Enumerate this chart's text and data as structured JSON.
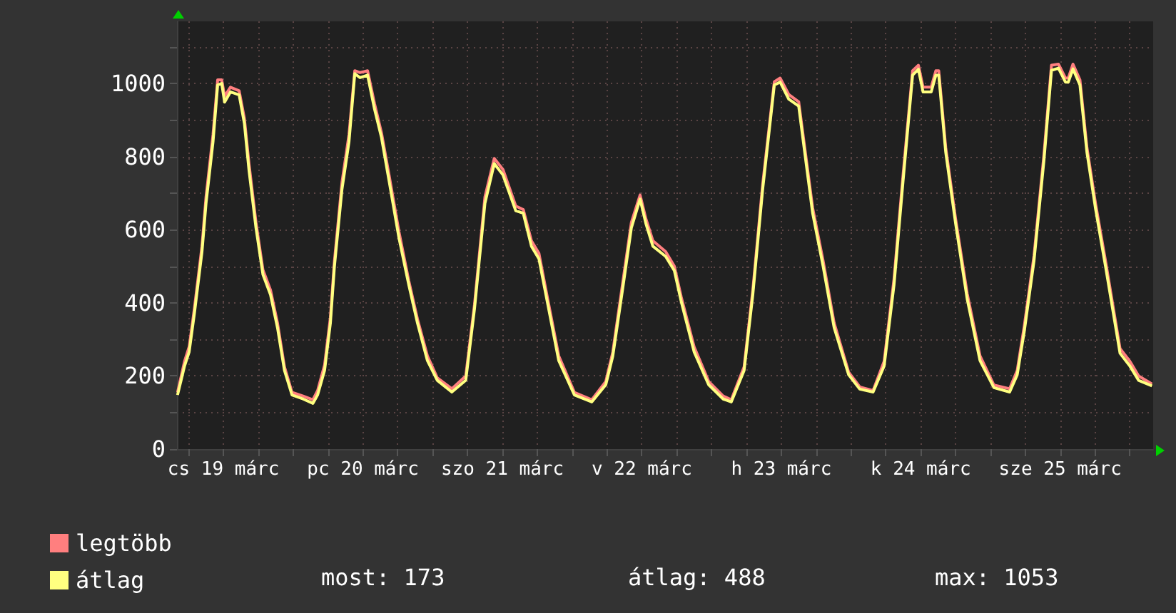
{
  "chart_data": {
    "type": "line",
    "x": [
      "--03-19T04:06",
      "--03-19T05:18",
      "--03-19T06:06",
      "--03-19T07:00",
      "--03-19T08:18",
      "--03-19T09:00",
      "--03-19T10:12",
      "--03-19T11:00",
      "--03-19T11:42",
      "--03-19T12:12",
      "--03-19T13:12",
      "--03-19T14:42",
      "--03-19T15:36",
      "--03-19T16:24",
      "--03-19T17:36",
      "--03-19T18:48",
      "--03-19T20:06",
      "--03-19T21:18",
      "--03-19T22:30",
      "--03-19T23:48",
      "--03-20T01:42",
      "--03-20T03:24",
      "--03-20T04:12",
      "--03-20T05:24",
      "--03-20T06:24",
      "--03-20T07:06",
      "--03-20T08:24",
      "--03-20T09:36",
      "--03-20T10:36",
      "--03-20T11:30",
      "--03-20T12:48",
      "--03-20T14:00",
      "--03-20T15:12",
      "--03-20T16:30",
      "--03-20T18:12",
      "--03-20T19:54",
      "--03-20T21:24",
      "--03-20T23:06",
      "--03-21T00:48",
      "--03-21T03:18",
      "--03-21T05:42",
      "--03-21T07:12",
      "--03-21T09:00",
      "--03-21T10:36",
      "--03-21T12:06",
      "--03-21T14:18",
      "--03-21T15:36",
      "--03-21T17:00",
      "--03-21T18:18",
      "--03-21T19:30",
      "--03-21T21:42",
      "--03-22T00:24",
      "--03-22T03:24",
      "--03-22T05:48",
      "--03-22T07:00",
      "--03-22T08:48",
      "--03-22T10:12",
      "--03-22T11:42",
      "--03-22T12:42",
      "--03-22T13:54",
      "--03-22T16:06",
      "--03-22T17:36",
      "--03-22T18:48",
      "--03-22T21:00",
      "--03-22T23:30",
      "--03-23T02:00",
      "--03-23T03:24",
      "--03-23T05:36",
      "--03-23T07:06",
      "--03-23T08:48",
      "--03-23T10:48",
      "--03-23T11:48",
      "--03-23T13:18",
      "--03-23T15:00",
      "--03-23T17:24",
      "--03-23T19:12",
      "--03-23T21:06",
      "--03-23T23:36",
      "--03-24T01:30",
      "--03-24T03:48",
      "--03-24T05:42",
      "--03-24T07:24",
      "--03-24T08:54",
      "--03-24T10:36",
      "--03-24T11:36",
      "--03-24T12:24",
      "--03-24T13:48",
      "--03-24T14:36",
      "--03-24T15:06",
      "--03-24T16:18",
      "--03-24T18:00",
      "--03-24T20:00",
      "--03-24T22:12",
      "--03-25T00:36",
      "--03-25T03:18",
      "--03-25T04:36",
      "--03-25T05:48",
      "--03-25T07:30",
      "--03-25T09:12",
      "--03-25T10:30",
      "--03-25T11:42",
      "--03-25T12:54",
      "--03-25T13:24",
      "--03-25T14:12",
      "--03-25T15:24",
      "--03-25T16:36",
      "--03-25T18:06",
      "--03-25T19:48",
      "--03-25T22:18",
      "--03-26T00:00",
      "--03-26T01:30",
      "--03-26T03:48"
    ],
    "series": [
      {
        "name": "legtöbb",
        "color": "#ff7f7f",
        "values": [
          155,
          240,
          280,
          385,
          555,
          690,
          860,
          1010,
          1010,
          965,
          990,
          980,
          905,
          780,
          620,
          490,
          435,
          345,
          225,
          155,
          145,
          135,
          160,
          230,
          360,
          515,
          730,
          860,
          1035,
          1030,
          1035,
          945,
          865,
          750,
          595,
          460,
          355,
          255,
          195,
          165,
          200,
          395,
          690,
          795,
          765,
          665,
          655,
          570,
          535,
          435,
          255,
          155,
          135,
          185,
          265,
          465,
          620,
          695,
          630,
          570,
          540,
          500,
          415,
          280,
          185,
          145,
          135,
          225,
          435,
          725,
          1005,
          1015,
          970,
          950,
          660,
          515,
          345,
          210,
          170,
          160,
          240,
          465,
          740,
          1035,
          1050,
          990,
          990,
          1035,
          1035,
          825,
          630,
          425,
          255,
          175,
          165,
          215,
          335,
          530,
          805,
          1050,
          1053,
          1015,
          1015,
          1053,
          1010,
          825,
          670,
          515,
          275,
          240,
          200,
          178
        ]
      },
      {
        "name": "átlag",
        "color": "#ffff80",
        "values": [
          148,
          227,
          266,
          371,
          539,
          672,
          840,
          996,
          1000,
          949,
          977,
          969,
          891,
          762,
          605,
          477,
          422,
          332,
          215,
          148,
          137,
          125,
          148,
          215,
          344,
          500,
          711,
          840,
          1027,
          1016,
          1023,
          930,
          852,
          734,
          578,
          449,
          344,
          242,
          188,
          156,
          188,
          383,
          672,
          781,
          750,
          652,
          645,
          555,
          520,
          422,
          242,
          148,
          129,
          176,
          254,
          449,
          605,
          684,
          617,
          555,
          527,
          488,
          402,
          266,
          176,
          137,
          129,
          215,
          422,
          711,
          996,
          1004,
          957,
          938,
          645,
          500,
          332,
          203,
          164,
          156,
          227,
          449,
          723,
          1023,
          1039,
          977,
          977,
          1023,
          1023,
          812,
          617,
          410,
          242,
          168,
          156,
          203,
          320,
          516,
          789,
          1036,
          1042,
          1004,
          1004,
          1040,
          996,
          812,
          656,
          500,
          262,
          227,
          188,
          173
        ]
      }
    ],
    "xlim": [
      "--03-19T04:00",
      "--03-26T04:00"
    ],
    "xticks": [
      {
        "value": "--03-19T06:00",
        "label": null
      },
      {
        "value": "--03-19T12:00",
        "label": "cs 19 márc"
      },
      {
        "value": "--03-19T18:00",
        "label": null
      },
      {
        "value": "--03-20T00:00",
        "label": null
      },
      {
        "value": "--03-20T06:00",
        "label": null
      },
      {
        "value": "--03-20T12:00",
        "label": "pc 20 márc"
      },
      {
        "value": "--03-20T18:00",
        "label": null
      },
      {
        "value": "--03-21T00:00",
        "label": null
      },
      {
        "value": "--03-21T06:00",
        "label": null
      },
      {
        "value": "--03-21T12:00",
        "label": "szo 21 márc"
      },
      {
        "value": "--03-21T18:00",
        "label": null
      },
      {
        "value": "--03-22T00:00",
        "label": null
      },
      {
        "value": "--03-22T06:00",
        "label": null
      },
      {
        "value": "--03-22T12:00",
        "label": "v 22 márc"
      },
      {
        "value": "--03-22T18:00",
        "label": null
      },
      {
        "value": "--03-23T00:00",
        "label": null
      },
      {
        "value": "--03-23T06:00",
        "label": null
      },
      {
        "value": "--03-23T12:00",
        "label": "h 23 márc"
      },
      {
        "value": "--03-23T18:00",
        "label": null
      },
      {
        "value": "--03-24T00:00",
        "label": null
      },
      {
        "value": "--03-24T06:00",
        "label": null
      },
      {
        "value": "--03-24T12:00",
        "label": "k 24 márc"
      },
      {
        "value": "--03-24T18:00",
        "label": null
      },
      {
        "value": "--03-25T00:00",
        "label": null
      },
      {
        "value": "--03-25T06:00",
        "label": null
      },
      {
        "value": "--03-25T12:00",
        "label": "sze 25 márc"
      },
      {
        "value": "--03-25T18:00",
        "label": null
      },
      {
        "value": "--03-26T00:00",
        "label": null
      }
    ],
    "ylim": [
      0,
      1170
    ],
    "yticks": [
      0,
      {
        "value": 100,
        "label": null
      },
      200,
      {
        "value": 300,
        "label": null
      },
      400,
      {
        "value": 500,
        "label": null
      },
      600,
      {
        "value": 700,
        "label": null
      },
      800,
      {
        "value": 900,
        "label": null
      },
      1000,
      {
        "value": 1100,
        "label": null
      }
    ],
    "grid": true,
    "legend": "bottom left",
    "marker": "none",
    "line_style": "solid",
    "annotations": [
      "most: 173",
      "átlag: 488",
      "max: 1053"
    ]
  }
}
